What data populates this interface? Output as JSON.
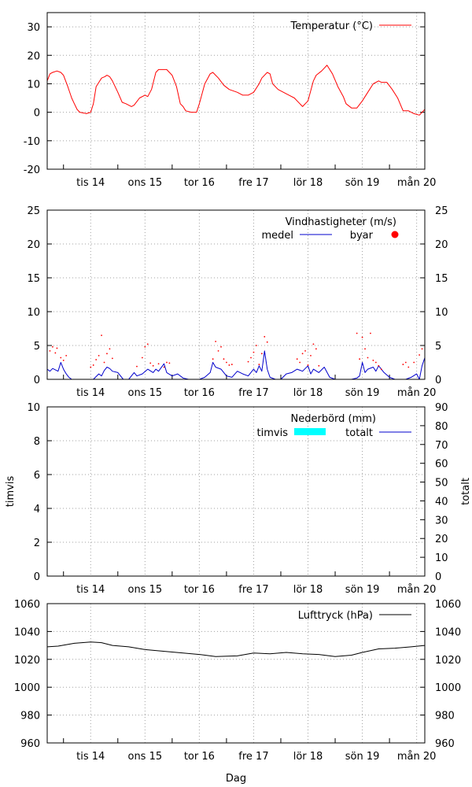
{
  "days": [
    "tis 14",
    "ons 15",
    "tor 16",
    "fre 17",
    "lör 18",
    "sön 19",
    "mån 20"
  ],
  "xlabel": "Dag",
  "colors": {
    "temperature": "#ff0000",
    "wind": "#0000cc",
    "precip_hourly": "#00ffff",
    "precip_total": "#0000cc",
    "pressure": "#000000",
    "grid": "#a0a0a0"
  },
  "chart_data": [
    {
      "type": "line",
      "title": "",
      "legend_position": "top-right",
      "grid": true,
      "x_unit": "day (0 = start of tis 14)",
      "xlim": [
        -0.3,
        6.65
      ],
      "ylim": [
        -20,
        35
      ],
      "yticks": [
        -20,
        -10,
        0,
        10,
        20,
        30
      ],
      "series": [
        {
          "name": "Temperatur (°C)",
          "x": [
            -0.3,
            -0.25,
            -0.2,
            -0.12,
            -0.05,
            0.0,
            0.08,
            0.15,
            0.2,
            0.25,
            0.3,
            0.38,
            0.42,
            0.5,
            0.55,
            0.6,
            0.7,
            0.76,
            0.8,
            0.85,
            0.9,
            1.0,
            1.08,
            1.15,
            1.25,
            1.3,
            1.4,
            1.5,
            1.55,
            1.62,
            1.7,
            1.75,
            1.8,
            1.9,
            2.0,
            2.08,
            2.15,
            2.2,
            2.25,
            2.35,
            2.45,
            2.5,
            2.6,
            2.7,
            2.75,
            2.85,
            2.95,
            3.05,
            3.2,
            3.3,
            3.4,
            3.5,
            3.6,
            3.65,
            3.75,
            3.8,
            3.85,
            3.95,
            4.05,
            4.15,
            4.25,
            4.3,
            4.4,
            4.5,
            4.6,
            4.65,
            4.75,
            4.85,
            4.95,
            5.05,
            5.15,
            5.2,
            5.3,
            5.4,
            5.5,
            5.6,
            5.7,
            5.8,
            5.85,
            5.95,
            6.05,
            6.15,
            6.25,
            6.35,
            6.45,
            6.55,
            6.65
          ],
          "y": [
            11,
            13.5,
            14,
            14.5,
            14,
            13,
            9,
            5,
            3,
            1,
            0,
            -0.3,
            -0.5,
            0,
            3,
            9,
            12,
            12.5,
            13,
            12.5,
            11,
            7,
            3.5,
            3,
            2,
            2.5,
            5,
            6,
            5.5,
            8,
            14,
            15,
            15,
            15,
            13,
            9,
            3,
            2,
            0.5,
            0,
            0,
            3,
            10,
            13.5,
            14,
            12,
            9.5,
            8,
            7,
            6,
            6,
            7,
            10,
            12,
            14,
            13.5,
            10,
            8,
            7,
            6,
            5,
            4,
            2,
            4,
            11,
            13,
            14.5,
            16.5,
            13.5,
            9,
            5.5,
            3,
            1.5,
            1.5,
            4,
            7,
            10,
            11,
            10.5,
            10.5,
            8,
            5,
            0.5,
            0.5,
            -0.5,
            -1,
            1
          ]
        }
      ]
    },
    {
      "type": "line",
      "title": "Vindhastigheter (m/s)",
      "legend_position": "top-right",
      "grid": true,
      "x_unit": "day (0 = start of tis 14)",
      "xlim": [
        -0.3,
        6.65
      ],
      "ylim": [
        0,
        25
      ],
      "yticks": [
        0,
        5,
        10,
        15,
        20,
        25
      ],
      "series": [
        {
          "name": "medel",
          "style": "line",
          "x": [
            -0.3,
            -0.25,
            -0.2,
            -0.1,
            -0.05,
            0.0,
            0.05,
            0.1,
            0.15,
            0.2,
            0.35,
            0.45,
            0.55,
            0.65,
            0.7,
            0.75,
            0.8,
            0.85,
            0.9,
            1.0,
            1.1,
            1.2,
            1.3,
            1.35,
            1.45,
            1.55,
            1.65,
            1.7,
            1.75,
            1.85,
            1.9,
            2.0,
            2.1,
            2.2,
            2.3,
            2.5,
            2.6,
            2.7,
            2.75,
            2.8,
            2.9,
            3.0,
            3.1,
            3.2,
            3.3,
            3.4,
            3.5,
            3.55,
            3.6,
            3.65,
            3.7,
            3.75,
            3.8,
            3.9,
            4.0,
            4.1,
            4.2,
            4.3,
            4.4,
            4.5,
            4.55,
            4.6,
            4.7,
            4.8,
            4.9,
            5.0,
            5.1,
            5.2,
            5.3,
            5.4,
            5.45,
            5.5,
            5.55,
            5.6,
            5.7,
            5.75,
            5.8,
            5.9,
            6.0,
            6.1,
            6.2,
            6.3,
            6.4,
            6.5,
            6.55,
            6.6,
            6.65
          ],
          "y": [
            1.5,
            1.2,
            1.6,
            1.2,
            2.5,
            1.5,
            0.8,
            0.3,
            0,
            0,
            0,
            0,
            0,
            0.8,
            0.5,
            1.3,
            1.8,
            1.6,
            1.2,
            1.0,
            0,
            0,
            1.0,
            0.5,
            0.8,
            1.5,
            1.0,
            1.5,
            1.2,
            2.3,
            1.0,
            0.5,
            0.8,
            0.2,
            0,
            0,
            0.3,
            1.0,
            2.5,
            1.8,
            1.5,
            0.5,
            0.3,
            1.2,
            0.8,
            0.5,
            1.5,
            1.0,
            2.0,
            1.2,
            4.2,
            1.5,
            0.3,
            0,
            0,
            0.8,
            1.0,
            1.5,
            1.2,
            2.0,
            0.8,
            1.5,
            1.0,
            1.8,
            0.3,
            0,
            0,
            0,
            0,
            0.2,
            0.5,
            2.5,
            1.0,
            1.5,
            1.8,
            1.2,
            2.0,
            1.0,
            0.3,
            0,
            0,
            0,
            0.3,
            0.8,
            0,
            2.0,
            3.2
          ]
        },
        {
          "name": "byar",
          "style": "points",
          "x": [
            -0.25,
            -0.2,
            -0.15,
            -0.12,
            -0.05,
            0.0,
            0.05,
            0.5,
            0.55,
            0.6,
            0.65,
            0.7,
            0.75,
            0.8,
            0.85,
            0.9,
            1.35,
            1.45,
            1.5,
            1.55,
            1.6,
            1.65,
            1.75,
            1.85,
            1.9,
            1.95,
            2.75,
            2.8,
            2.85,
            2.9,
            2.95,
            3.0,
            3.05,
            3.1,
            3.4,
            3.45,
            3.5,
            3.55,
            3.6,
            3.65,
            3.7,
            3.75,
            4.3,
            4.35,
            4.4,
            4.45,
            4.5,
            4.55,
            4.6,
            4.65,
            4.7,
            5.4,
            5.45,
            5.5,
            5.55,
            5.6,
            5.65,
            5.7,
            5.75,
            5.8,
            5.85,
            6.25,
            6.3,
            6.35,
            6.45,
            6.55,
            6.6
          ],
          "y": [
            4.2,
            4.8,
            3.9,
            4.6,
            3.2,
            2.8,
            3.5,
            1.8,
            2.1,
            2.9,
            3.5,
            6.5,
            2.5,
            3.8,
            4.5,
            3.1,
            1.9,
            3.2,
            4.8,
            5.2,
            2.4,
            2.0,
            2.3,
            1.8,
            2.5,
            2.4,
            3.0,
            5.6,
            4.2,
            4.8,
            3.0,
            2.5,
            2.1,
            2.2,
            2.6,
            3.2,
            4.0,
            5.0,
            2.2,
            3.8,
            6.3,
            5.5,
            3.0,
            2.5,
            3.8,
            4.2,
            2.1,
            3.5,
            5.2,
            4.5,
            2.0,
            6.8,
            3.0,
            6.2,
            4.5,
            3.2,
            6.8,
            2.8,
            2.5,
            2.0,
            1.5,
            2.2,
            2.5,
            1.8,
            2.5,
            3.6,
            4.5
          ]
        }
      ],
      "y2lim": [
        0,
        25
      ],
      "y2ticks": [
        0,
        5,
        10,
        15,
        20,
        25
      ]
    },
    {
      "type": "bar",
      "title": "Nederbörd (mm)",
      "legend_position": "top-right",
      "grid": true,
      "x_unit": "day (0 = start of tis 14)",
      "xlim": [
        -0.3,
        6.65
      ],
      "ylabel": "timvis",
      "ylim": [
        0,
        10
      ],
      "yticks": [
        0,
        2,
        4,
        6,
        8,
        10
      ],
      "y2label": "totalt",
      "y2lim": [
        0,
        90
      ],
      "y2ticks": [
        0,
        10,
        20,
        30,
        40,
        50,
        60,
        70,
        80,
        90
      ],
      "series": [
        {
          "name": "timvis",
          "style": "bars",
          "x": [],
          "values": []
        },
        {
          "name": "totalt",
          "style": "line",
          "x": [],
          "values": []
        }
      ]
    },
    {
      "type": "line",
      "title": "",
      "legend_position": "top-right",
      "grid": true,
      "x_unit": "day (0 = start of tis 14)",
      "xlim": [
        -0.3,
        6.65
      ],
      "xlabel": "Dag",
      "ylim": [
        960,
        1060
      ],
      "yticks": [
        960,
        980,
        1000,
        1020,
        1040,
        1060
      ],
      "y2lim": [
        960,
        1060
      ],
      "y2ticks": [
        960,
        980,
        1000,
        1020,
        1040,
        1060
      ],
      "series": [
        {
          "name": "Lufttryck (hPa)",
          "x": [
            -0.3,
            -0.1,
            0.2,
            0.5,
            0.7,
            0.9,
            1.2,
            1.5,
            1.8,
            2.2,
            2.5,
            2.8,
            3.2,
            3.5,
            3.8,
            4.1,
            4.4,
            4.7,
            5.0,
            5.3,
            5.5,
            5.8,
            6.1,
            6.4,
            6.65
          ],
          "y": [
            1029,
            1029.5,
            1031.5,
            1032.5,
            1032,
            1030,
            1029,
            1027,
            1026,
            1024.5,
            1023.5,
            1022,
            1022.5,
            1024.5,
            1024,
            1025,
            1024,
            1023.5,
            1022,
            1023,
            1025,
            1027.5,
            1028,
            1029,
            1030
          ]
        }
      ]
    }
  ]
}
